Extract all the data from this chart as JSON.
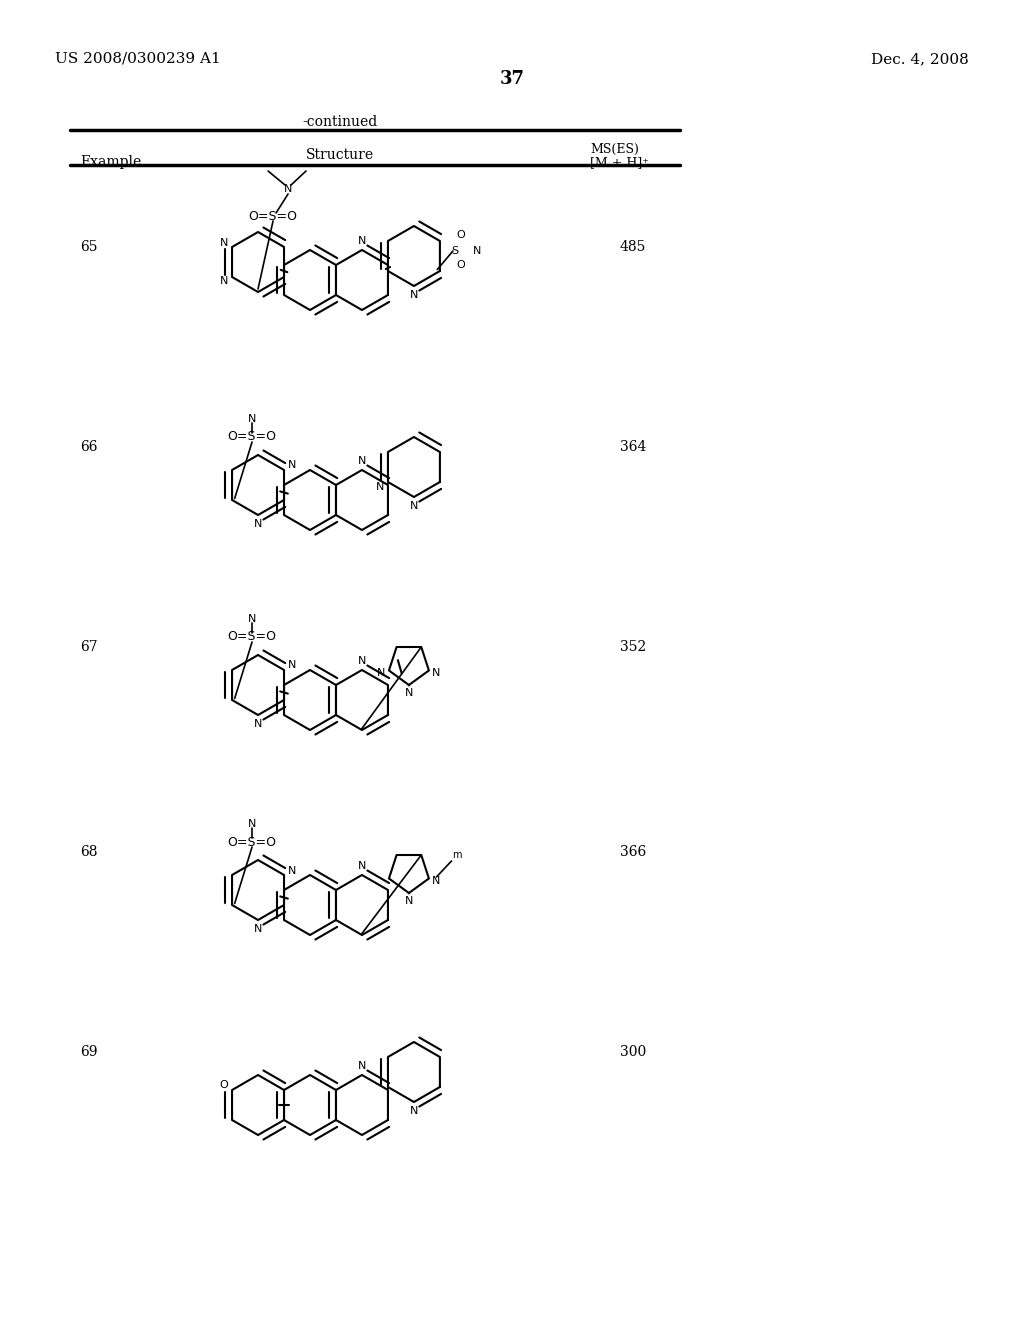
{
  "background_color": "#ffffff",
  "header_left": "US 2008/0300239 A1",
  "header_right": "Dec. 4, 2008",
  "page_number": "37",
  "continued_text": "-continued",
  "rows": [
    {
      "example": "65",
      "ms_value": "485"
    },
    {
      "example": "66",
      "ms_value": "364"
    },
    {
      "example": "67",
      "ms_value": "352"
    },
    {
      "example": "68",
      "ms_value": "366"
    },
    {
      "example": "69",
      "ms_value": "300"
    }
  ]
}
